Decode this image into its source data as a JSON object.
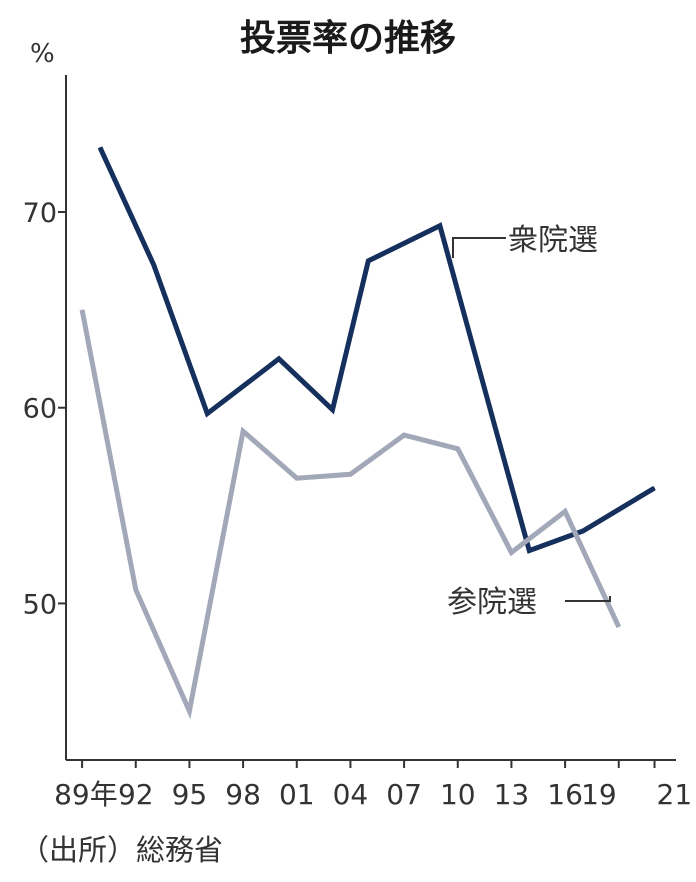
{
  "chart_data": {
    "type": "line",
    "title": "投票率の推移",
    "ylabel": "%",
    "ylim": [
      42,
      77
    ],
    "yticks": [
      {
        "value": 70,
        "label": "70"
      },
      {
        "value": 60,
        "label": "60"
      },
      {
        "value": 50,
        "label": "50"
      }
    ],
    "xticks": [
      {
        "year": 1989,
        "label": "89年"
      },
      {
        "year": 1992,
        "label": "92"
      },
      {
        "year": 1995,
        "label": "95"
      },
      {
        "year": 1998,
        "label": "98"
      },
      {
        "year": 2001,
        "label": "01"
      },
      {
        "year": 2004,
        "label": "04"
      },
      {
        "year": 2007,
        "label": "07"
      },
      {
        "year": 2010,
        "label": "10"
      },
      {
        "year": 2013,
        "label": "13"
      },
      {
        "year": 2016,
        "label": "16"
      },
      {
        "year": 2019,
        "label": "19"
      },
      {
        "year": 2021,
        "label": "21"
      }
    ],
    "xlim": [
      1988.1,
      2022.2
    ],
    "series": [
      {
        "name": "衆院選",
        "color": "#16305e",
        "x": [
          1990,
          1993,
          1996,
          2000,
          2003,
          2005,
          2009,
          2012,
          2014,
          2017,
          2021
        ],
        "values": [
          73.3,
          67.3,
          59.7,
          62.5,
          59.9,
          67.5,
          69.3,
          59.3,
          52.7,
          53.7,
          55.9
        ]
      },
      {
        "name": "参院選",
        "color": "#a3a8b9",
        "x": [
          1989,
          1992,
          1995,
          1998,
          2001,
          2004,
          2007,
          2010,
          2013,
          2016,
          2019
        ],
        "values": [
          65.0,
          50.7,
          44.5,
          58.8,
          56.4,
          56.6,
          58.6,
          57.9,
          52.6,
          54.7,
          48.8
        ]
      }
    ],
    "source": "（出所）総務省"
  }
}
